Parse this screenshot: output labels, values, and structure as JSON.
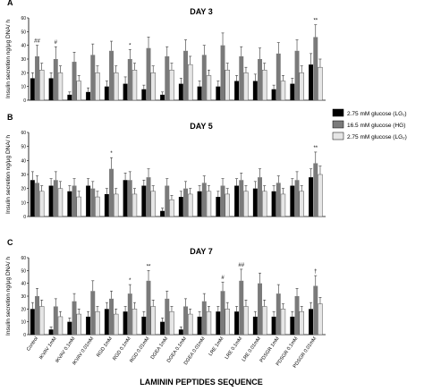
{
  "x_axis_title": "LAMININ PEPTIDES SEQUENCE",
  "legend": {
    "placement": "right",
    "entries": [
      {
        "label": "2.75 mM glucose (LG₁)",
        "fill": "#000000",
        "name": "legend-lg1"
      },
      {
        "label": "16.5 mM glucose (HG)",
        "fill": "#7a7a7a",
        "name": "legend-hg"
      },
      {
        "label": "2.75 mM glucose (LG₂)",
        "fill": "#e6e6e6",
        "name": "legend-lg2"
      }
    ]
  },
  "chart_data": [
    {
      "type": "bar",
      "panel": "A",
      "title": "DAY 3",
      "ylabel": "Insulin secretion ng/μg DNA/ h",
      "ylim": [
        0,
        60
      ],
      "yticks": [
        0,
        10,
        20,
        30,
        40,
        50,
        60
      ],
      "categories": [
        "Control",
        "IKVAV 1mM",
        "IKVAV 0.1mM",
        "IKVAV 0.01mM",
        "RGD 1mM",
        "RGD 0.1mM",
        "RGD 0.01mM",
        "DGEA 1mM",
        "DGEA 0.1mM",
        "DGEA 0.01mM",
        "LRE 1mM",
        "LRE 0.1mM",
        "LRE 0.01mM",
        "PDSGR 1mM",
        "PDSGR 0.1mM",
        "PDSGR 0.01mM"
      ],
      "series": [
        {
          "name": "2.75 mM glucose (LG₁)",
          "values": [
            16,
            16,
            4,
            6,
            10,
            12,
            8,
            4,
            12,
            10,
            10,
            14,
            14,
            8,
            12,
            26
          ],
          "errors": [
            4,
            4,
            2,
            3,
            4,
            5,
            3,
            2,
            4,
            4,
            4,
            4,
            5,
            3,
            4,
            8
          ]
        },
        {
          "name": "16.5 mM glucose (HG)",
          "values": [
            32,
            30,
            28,
            33,
            36,
            30,
            38,
            32,
            36,
            33,
            40,
            32,
            30,
            34,
            36,
            46
          ],
          "errors": [
            8,
            9,
            7,
            8,
            7,
            7,
            8,
            7,
            8,
            7,
            9,
            7,
            8,
            8,
            8,
            9
          ]
        },
        {
          "name": "2.75 mM glucose (LG₂)",
          "values": [
            22,
            20,
            14,
            20,
            20,
            22,
            20,
            22,
            26,
            18,
            22,
            20,
            22,
            14,
            20,
            24
          ],
          "errors": [
            5,
            5,
            4,
            5,
            5,
            5,
            5,
            5,
            6,
            4,
            5,
            4,
            5,
            4,
            5,
            6
          ]
        }
      ],
      "annotations": [
        {
          "category": "IKVAV 1mM",
          "text": "#"
        },
        {
          "category": "RGD 0.1mM",
          "text": "*"
        },
        {
          "category": "PDSGR 0.01mM",
          "text": "**"
        },
        {
          "category": "Control",
          "text": "##"
        }
      ]
    },
    {
      "type": "bar",
      "panel": "B",
      "title": "DAY 5",
      "ylabel": "Insulin secretion ng/μg DNA/ h",
      "ylim": [
        0,
        60
      ],
      "yticks": [
        0,
        10,
        20,
        30,
        40,
        50,
        60
      ],
      "categories": [
        "Control",
        "IKVAV 1mM",
        "IKVAV 0.1mM",
        "IKVAV 0.01mM",
        "RGD 1mM",
        "RGD 0.1mM",
        "RGD 0.01mM",
        "DGEA 1mM",
        "DGEA 0.1mM",
        "DGEA 0.01mM",
        "LRE 1mM",
        "LRE 0.1mM",
        "LRE 0.01mM",
        "PDSGR 1mM",
        "PDSGR 0.1mM",
        "PDSGR 0.01mM"
      ],
      "series": [
        {
          "name": "2.75 mM glucose (LG₁)",
          "values": [
            26,
            22,
            18,
            22,
            16,
            26,
            22,
            4,
            14,
            18,
            14,
            22,
            20,
            18,
            22,
            28
          ],
          "errors": [
            6,
            5,
            4,
            5,
            4,
            5,
            4,
            2,
            4,
            4,
            4,
            5,
            5,
            4,
            5,
            6
          ]
        },
        {
          "name": "16.5 mM glucose (HG)",
          "values": [
            24,
            26,
            22,
            20,
            34,
            26,
            28,
            22,
            20,
            24,
            22,
            26,
            28,
            24,
            26,
            38
          ],
          "errors": [
            5,
            6,
            5,
            5,
            8,
            6,
            6,
            5,
            5,
            5,
            5,
            5,
            6,
            5,
            6,
            8
          ]
        },
        {
          "name": "2.75 mM glucose (LG₂)",
          "values": [
            18,
            20,
            14,
            14,
            16,
            16,
            18,
            12,
            16,
            18,
            16,
            18,
            18,
            16,
            18,
            30
          ],
          "errors": [
            4,
            5,
            4,
            4,
            4,
            4,
            4,
            3,
            4,
            4,
            4,
            4,
            4,
            4,
            4,
            6
          ]
        }
      ],
      "annotations": [
        {
          "category": "RGD 1mM",
          "text": "*"
        },
        {
          "category": "PDSGR 0.01mM",
          "text": "**"
        }
      ]
    },
    {
      "type": "bar",
      "panel": "C",
      "title": "DAY 7",
      "ylabel": "Insulin secretion ng/μg DNA/ h",
      "ylim": [
        0,
        60
      ],
      "yticks": [
        0,
        10,
        20,
        30,
        40,
        50,
        60
      ],
      "categories": [
        "Control",
        "IKVAV 1mM",
        "IKVAV 0.1mM",
        "IKVAV 0.01mM",
        "RGD 1mM",
        "RGD 0.1mM",
        "RGD 0.01mM",
        "DGEA 1mM",
        "DGEA 0.1mM",
        "DGEA 0.01mM",
        "LRE 1mM",
        "LRE 0.1mM",
        "LRE 0.01mM",
        "PDSGR 1mM",
        "PDSGR 0.1mM",
        "PDSGR 0.01mM"
      ],
      "series": [
        {
          "name": "2.75 mM glucose (LG₁)",
          "values": [
            20,
            4,
            10,
            14,
            20,
            18,
            14,
            10,
            4,
            14,
            18,
            18,
            14,
            14,
            14,
            20
          ],
          "errors": [
            5,
            2,
            3,
            4,
            5,
            4,
            4,
            3,
            2,
            4,
            4,
            4,
            4,
            4,
            4,
            5
          ]
        },
        {
          "name": "16.5 mM glucose (HG)",
          "values": [
            30,
            22,
            26,
            34,
            28,
            32,
            42,
            28,
            22,
            26,
            34,
            42,
            40,
            32,
            30,
            38
          ],
          "errors": [
            6,
            6,
            6,
            8,
            6,
            7,
            8,
            6,
            6,
            6,
            7,
            9,
            8,
            7,
            6,
            8
          ]
        },
        {
          "name": "2.75 mM glucose (LG₂)",
          "values": [
            22,
            14,
            16,
            18,
            16,
            20,
            22,
            18,
            16,
            18,
            20,
            22,
            22,
            20,
            18,
            24
          ],
          "errors": [
            5,
            4,
            4,
            4,
            4,
            5,
            5,
            4,
            4,
            4,
            5,
            5,
            5,
            4,
            4,
            5
          ]
        }
      ],
      "annotations": [
        {
          "category": "RGD 0.1mM",
          "text": "*"
        },
        {
          "category": "RGD 0.01mM",
          "text": "**"
        },
        {
          "category": "LRE 1mM",
          "text": "#"
        },
        {
          "category": "LRE 0.1mM",
          "text": "##"
        },
        {
          "category": "PDSGR 0.01mM",
          "text": "†"
        }
      ]
    }
  ]
}
